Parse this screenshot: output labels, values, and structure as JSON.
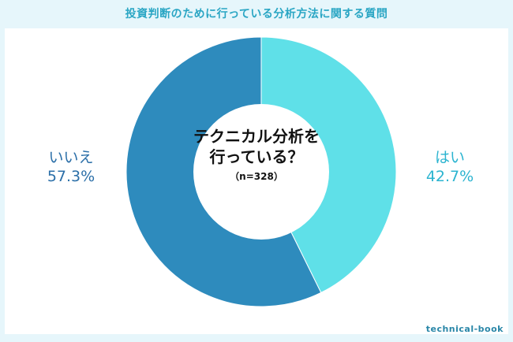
{
  "title": "投資判断のために行っている分析方法に関する質問",
  "question": "テクニカル分析を\n行っている？",
  "sample": "（n=328）",
  "brand": "technical-book",
  "colors": {
    "yes": "#5fe0e8",
    "no": "#2e8bbd",
    "title": "#2aa6c4"
  },
  "chart_data": {
    "type": "pie",
    "categories": [
      "はい",
      "いいえ"
    ],
    "values": [
      42.7,
      57.3
    ],
    "labels": [
      {
        "name": "はい",
        "value": "42.7%"
      },
      {
        "name": "いいえ",
        "value": "57.3%"
      }
    ]
  }
}
